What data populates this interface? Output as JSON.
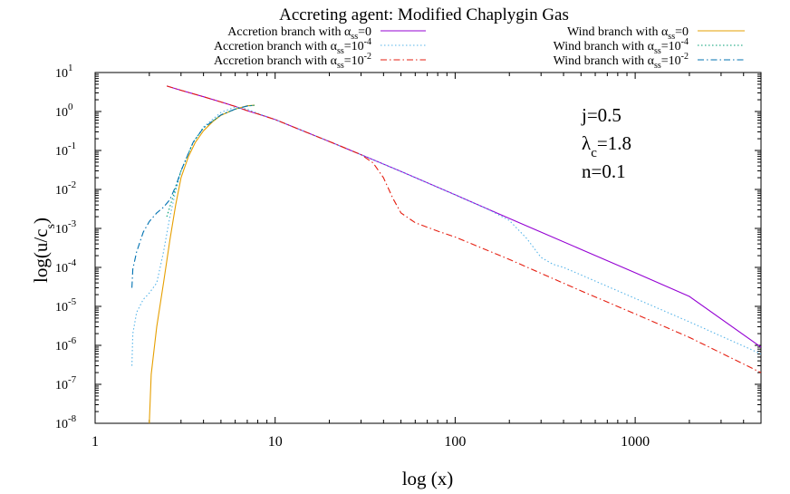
{
  "chart_data": {
    "type": "line",
    "title": "Accreting agent: Modified Chaplygin Gas",
    "xlabel": "log (x)",
    "ylabel": {
      "base": "log(u/c",
      "sub": "s",
      "tail": ")"
    },
    "xscale": "log",
    "yscale": "log",
    "xlim": [
      1,
      5000
    ],
    "ylim": [
      1e-08,
      10
    ],
    "x_ticks": [
      {
        "value": 1,
        "label": "1"
      },
      {
        "value": 10,
        "label": "10"
      },
      {
        "value": 100,
        "label": "100"
      },
      {
        "value": 1000,
        "label": "1000"
      }
    ],
    "y_ticks": [
      {
        "value": 10,
        "base": "10",
        "exp": "1"
      },
      {
        "value": 1,
        "base": "10",
        "exp": "0"
      },
      {
        "value": 0.1,
        "base": "10",
        "exp": "-1"
      },
      {
        "value": 0.01,
        "base": "10",
        "exp": "-2"
      },
      {
        "value": 0.001,
        "base": "10",
        "exp": "-3"
      },
      {
        "value": 0.0001,
        "base": "10",
        "exp": "-4"
      },
      {
        "value": 1e-05,
        "base": "10",
        "exp": "-5"
      },
      {
        "value": 1e-06,
        "base": "10",
        "exp": "-6"
      },
      {
        "value": 1e-07,
        "base": "10",
        "exp": "-7"
      },
      {
        "value": 1e-08,
        "base": "10",
        "exp": "-8"
      }
    ],
    "annotations": [
      {
        "id": "j",
        "parts": [
          {
            "t": "j=0.5"
          }
        ]
      },
      {
        "id": "lambda",
        "parts": [
          {
            "t": "λ"
          },
          {
            "t": "c",
            "sub": true
          },
          {
            "t": "=1.8"
          }
        ]
      },
      {
        "id": "n",
        "parts": [
          {
            "t": "n=0.1"
          }
        ]
      }
    ],
    "series": [
      {
        "id": "acc0",
        "legend": {
          "pre": "Accretion branch with α",
          "sub": "ss",
          "mid": "=0",
          "sup": ""
        },
        "color": "#9400d3",
        "dash": "",
        "legend_position": "top-left",
        "x": [
          2.5,
          3,
          4,
          5,
          6,
          7,
          8,
          10,
          15,
          20,
          30,
          50,
          100,
          200,
          500,
          1000,
          2000,
          5000
        ],
        "y": [
          4.5,
          3.5,
          2.4,
          1.75,
          1.35,
          1.05,
          0.87,
          0.62,
          0.29,
          0.17,
          0.078,
          0.029,
          0.0073,
          0.0018,
          0.00029,
          7.3e-05,
          1.8e-05,
          9e-07
        ]
      },
      {
        "id": "acc4",
        "legend": {
          "pre": "Accretion branch with α",
          "sub": "ss",
          "mid": "=10",
          "sup": "-4"
        },
        "color": "#56b4e9",
        "dash": "1.5,2.5",
        "legend_position": "top-left",
        "x": [
          1.6,
          1.62,
          1.7,
          1.85,
          2.0,
          2.2,
          2.4,
          2.6,
          2.8,
          3.0,
          3.5,
          4.0,
          5.0,
          6.0,
          7.0,
          8.0,
          10,
          15,
          20,
          30,
          50,
          100,
          150,
          200,
          250,
          300,
          350,
          400,
          500,
          1000,
          2000,
          5000
        ],
        "y": [
          3e-07,
          2e-06,
          7e-06,
          1.5e-05,
          2.2e-05,
          4e-05,
          0.00025,
          0.002,
          0.009,
          0.03,
          0.16,
          0.4,
          0.95,
          1.3,
          1.15,
          0.9,
          0.62,
          0.29,
          0.17,
          0.078,
          0.029,
          0.0073,
          0.0032,
          0.0016,
          0.00055,
          0.00018,
          0.00012,
          0.0001,
          6.4e-05,
          1.6e-05,
          4e-06,
          6e-07
        ]
      },
      {
        "id": "acc2",
        "legend": {
          "pre": "Accretion branch with α",
          "sub": "ss",
          "mid": "=10",
          "sup": "-2"
        },
        "color": "#e51e10",
        "dash": "7,3,1.5,3",
        "legend_position": "top-left",
        "x": [
          2.5,
          3,
          4,
          5,
          6,
          7,
          8,
          10,
          15,
          20,
          30,
          35,
          40,
          45,
          50,
          60,
          80,
          100,
          200,
          500,
          1000,
          2000,
          5000
        ],
        "y": [
          4.5,
          3.5,
          2.4,
          1.75,
          1.35,
          1.05,
          0.87,
          0.62,
          0.29,
          0.17,
          0.078,
          0.048,
          0.02,
          0.006,
          0.0025,
          0.0014,
          0.00085,
          0.0006,
          0.00016,
          2.5e-05,
          6.4e-06,
          1.6e-06,
          2e-07
        ]
      },
      {
        "id": "wind0",
        "legend": {
          "pre": "Wind branch with α",
          "sub": "ss",
          "mid": "=0",
          "sup": ""
        },
        "color": "#e69f00",
        "dash": "",
        "legend_position": "top-right",
        "x": [
          2.0,
          2.05,
          2.2,
          2.4,
          2.6,
          2.8,
          3.0,
          3.3,
          3.6,
          4.0,
          4.5,
          5.0,
          6.0,
          7.0,
          7.7
        ],
        "y": [
          1e-08,
          1.8e-07,
          3e-06,
          4e-05,
          0.0005,
          0.004,
          0.02,
          0.07,
          0.16,
          0.32,
          0.55,
          0.8,
          1.15,
          1.4,
          1.45
        ]
      },
      {
        "id": "wind4",
        "legend": {
          "pre": "Wind branch with α",
          "sub": "ss",
          "mid": "=10",
          "sup": "-4"
        },
        "color": "#009e73",
        "dash": "1.5,2.5",
        "legend_position": "top-right",
        "x": [
          2.5,
          3.0,
          3.5,
          4.0,
          5.0,
          6.0,
          7.0,
          7.7
        ],
        "y": [
          0.002,
          0.03,
          0.16,
          0.38,
          0.82,
          1.15,
          1.38,
          1.45
        ]
      },
      {
        "id": "wind2",
        "legend": {
          "pre": "Wind branch with α",
          "sub": "ss",
          "mid": "=10",
          "sup": "-2"
        },
        "color": "#0072b2",
        "dash": "7,3,1.5,3",
        "legend_position": "top-right",
        "x": [
          1.6,
          1.62,
          1.7,
          1.85,
          2.0,
          2.2,
          2.4,
          2.6,
          2.8,
          3.0,
          3.5,
          4.0,
          5.0,
          6.0,
          7.0,
          7.7
        ],
        "y": [
          3e-05,
          9e-05,
          0.00025,
          0.0008,
          0.0015,
          0.0025,
          0.0035,
          0.0055,
          0.012,
          0.03,
          0.16,
          0.38,
          0.82,
          1.15,
          1.38,
          1.45
        ]
      }
    ]
  }
}
